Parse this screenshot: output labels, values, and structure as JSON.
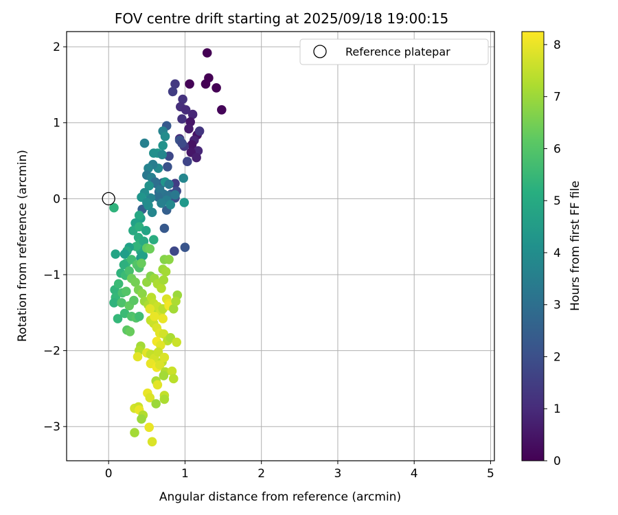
{
  "chart_data": {
    "type": "scatter",
    "title": "FOV centre drift starting at 2025/09/18 19:00:15",
    "xlabel": "Angular distance from reference (arcmin)",
    "ylabel": "Rotation from reference (arcmin)",
    "xlim": [
      -0.55,
      5.05
    ],
    "ylim": [
      -3.45,
      2.2
    ],
    "xticks": [
      0,
      1,
      2,
      3,
      4,
      5
    ],
    "yticks": [
      2,
      1,
      0,
      -1,
      -2,
      -3
    ],
    "xtick_labels": [
      "0",
      "1",
      "2",
      "3",
      "4",
      "5"
    ],
    "ytick_labels": [
      "2",
      "1",
      "0",
      "−1",
      "−2",
      "−3"
    ],
    "grid": true,
    "legend": {
      "position": "top-right",
      "entries": [
        "Reference platepar"
      ]
    },
    "colorbar": {
      "label": "Hours from first FF file",
      "range": [
        0,
        8.25
      ],
      "ticks": [
        0,
        1,
        2,
        3,
        4,
        5,
        6,
        7,
        8
      ],
      "colormap": "viridis"
    },
    "reference_point": {
      "x": 0,
      "y": 0
    },
    "points": [
      {
        "x": 1.29,
        "y": 1.92,
        "t": 0.0
      },
      {
        "x": 1.31,
        "y": 1.59,
        "t": 0.0
      },
      {
        "x": 1.27,
        "y": 1.51,
        "t": 0.0
      },
      {
        "x": 1.41,
        "y": 1.46,
        "t": 0.0
      },
      {
        "x": 1.06,
        "y": 1.51,
        "t": 0.05
      },
      {
        "x": 1.48,
        "y": 1.17,
        "t": 0.1
      },
      {
        "x": 0.87,
        "y": 1.51,
        "t": 1.4
      },
      {
        "x": 0.84,
        "y": 1.41,
        "t": 1.5
      },
      {
        "x": 0.97,
        "y": 1.31,
        "t": 1.2
      },
      {
        "x": 0.94,
        "y": 1.21,
        "t": 1.1
      },
      {
        "x": 1.01,
        "y": 1.17,
        "t": 1.0
      },
      {
        "x": 1.1,
        "y": 1.11,
        "t": 0.9
      },
      {
        "x": 0.96,
        "y": 1.05,
        "t": 1.2
      },
      {
        "x": 1.07,
        "y": 1.01,
        "t": 0.5
      },
      {
        "x": 1.05,
        "y": 0.92,
        "t": 0.6
      },
      {
        "x": 1.16,
        "y": 0.84,
        "t": 0.4
      },
      {
        "x": 1.19,
        "y": 0.89,
        "t": 1.3
      },
      {
        "x": 1.12,
        "y": 0.77,
        "t": 0.8
      },
      {
        "x": 1.09,
        "y": 0.71,
        "t": 0.4
      },
      {
        "x": 1.17,
        "y": 0.63,
        "t": 0.9
      },
      {
        "x": 1.08,
        "y": 0.61,
        "t": 0.5
      },
      {
        "x": 0.99,
        "y": 0.69,
        "t": 1.4
      },
      {
        "x": 0.93,
        "y": 0.79,
        "t": 1.0
      },
      {
        "x": 1.03,
        "y": 0.49,
        "t": 1.7
      },
      {
        "x": 1.15,
        "y": 0.54,
        "t": 0.7
      },
      {
        "x": 0.76,
        "y": 0.96,
        "t": 2.3
      },
      {
        "x": 0.93,
        "y": 0.77,
        "t": 2.1
      },
      {
        "x": 0.96,
        "y": 0.73,
        "t": 1.9
      },
      {
        "x": 0.79,
        "y": 0.56,
        "t": 1.8
      },
      {
        "x": 0.87,
        "y": 0.2,
        "t": 1.5
      },
      {
        "x": 0.77,
        "y": 0.42,
        "t": 2.1
      },
      {
        "x": 0.71,
        "y": 0.21,
        "t": 2.4
      },
      {
        "x": 0.82,
        "y": 0.06,
        "t": 2.2
      },
      {
        "x": 0.87,
        "y": 0.01,
        "t": 2.0
      },
      {
        "x": 0.89,
        "y": 0.1,
        "t": 1.9
      },
      {
        "x": 0.76,
        "y": -0.15,
        "t": 2.5
      },
      {
        "x": 0.73,
        "y": -0.39,
        "t": 2.3
      },
      {
        "x": 0.86,
        "y": -0.69,
        "t": 1.8
      },
      {
        "x": 1.0,
        "y": -0.64,
        "t": 2.2
      },
      {
        "x": 0.62,
        "y": 0.2,
        "t": 2.6
      },
      {
        "x": 0.66,
        "y": 0.09,
        "t": 2.7
      },
      {
        "x": 0.44,
        "y": -0.14,
        "t": 2.5
      },
      {
        "x": 0.71,
        "y": 0.89,
        "t": 3.7
      },
      {
        "x": 0.74,
        "y": 0.82,
        "t": 4.0
      },
      {
        "x": 0.71,
        "y": 0.7,
        "t": 4.2
      },
      {
        "x": 0.64,
        "y": 0.6,
        "t": 4.4
      },
      {
        "x": 0.59,
        "y": 0.6,
        "t": 4.1
      },
      {
        "x": 0.7,
        "y": 0.58,
        "t": 3.8
      },
      {
        "x": 0.65,
        "y": 0.4,
        "t": 3.9
      },
      {
        "x": 0.58,
        "y": 0.45,
        "t": 3.5
      },
      {
        "x": 0.52,
        "y": 0.4,
        "t": 3.7
      },
      {
        "x": 0.5,
        "y": 0.31,
        "t": 3.3
      },
      {
        "x": 0.56,
        "y": 0.28,
        "t": 3.6
      },
      {
        "x": 0.61,
        "y": 0.22,
        "t": 3.0
      },
      {
        "x": 0.74,
        "y": 0.22,
        "t": 4.3
      },
      {
        "x": 0.79,
        "y": 0.19,
        "t": 3.4
      },
      {
        "x": 0.98,
        "y": 0.27,
        "t": 3.8
      },
      {
        "x": 0.67,
        "y": 0.12,
        "t": 3.3
      },
      {
        "x": 0.72,
        "y": 0.06,
        "t": 3.2
      },
      {
        "x": 0.65,
        "y": 0.02,
        "t": 3.0
      },
      {
        "x": 0.78,
        "y": 0.04,
        "t": 3.1
      },
      {
        "x": 0.87,
        "y": 0.05,
        "t": 3.3
      },
      {
        "x": 0.76,
        "y": -0.02,
        "t": 3.5
      },
      {
        "x": 0.81,
        "y": -0.08,
        "t": 3.9
      },
      {
        "x": 0.69,
        "y": -0.06,
        "t": 3.6
      },
      {
        "x": 0.55,
        "y": 0.01,
        "t": 3.7
      },
      {
        "x": 0.53,
        "y": 0.17,
        "t": 4.2
      },
      {
        "x": 0.47,
        "y": 0.08,
        "t": 4.0
      },
      {
        "x": 0.43,
        "y": 0.02,
        "t": 4.3
      },
      {
        "x": 0.52,
        "y": -0.09,
        "t": 4.1
      },
      {
        "x": 0.57,
        "y": -0.18,
        "t": 3.8
      },
      {
        "x": 0.5,
        "y": -0.05,
        "t": 4.0
      },
      {
        "x": 0.47,
        "y": 0.73,
        "t": 3.6
      },
      {
        "x": 0.99,
        "y": -0.05,
        "t": 4.4
      },
      {
        "x": 0.42,
        "y": -0.26,
        "t": 4.6
      },
      {
        "x": 0.4,
        "y": -0.22,
        "t": 4.9
      },
      {
        "x": 0.35,
        "y": -0.32,
        "t": 4.7
      },
      {
        "x": 0.32,
        "y": -0.42,
        "t": 5.0
      },
      {
        "x": 0.4,
        "y": -0.37,
        "t": 5.2
      },
      {
        "x": 0.49,
        "y": -0.42,
        "t": 4.8
      },
      {
        "x": 0.39,
        "y": -0.51,
        "t": 5.1
      },
      {
        "x": 0.41,
        "y": -0.59,
        "t": 5.3
      },
      {
        "x": 0.46,
        "y": -0.56,
        "t": 5.0
      },
      {
        "x": 0.42,
        "y": -0.69,
        "t": 4.9
      },
      {
        "x": 0.36,
        "y": -0.63,
        "t": 5.4
      },
      {
        "x": 0.27,
        "y": -0.64,
        "t": 4.7
      },
      {
        "x": 0.24,
        "y": -0.69,
        "t": 5.0
      },
      {
        "x": 0.21,
        "y": -0.73,
        "t": 4.6
      },
      {
        "x": 0.09,
        "y": -0.73,
        "t": 4.8
      },
      {
        "x": 0.07,
        "y": -0.12,
        "t": 5.3
      },
      {
        "x": 0.42,
        "y": -0.78,
        "t": 4.5
      },
      {
        "x": 0.45,
        "y": -0.75,
        "t": 4.7
      },
      {
        "x": 0.59,
        "y": -0.54,
        "t": 5.1
      },
      {
        "x": 0.23,
        "y": -0.85,
        "t": 5.5
      },
      {
        "x": 0.3,
        "y": -0.8,
        "t": 5.7
      },
      {
        "x": 0.2,
        "y": -0.87,
        "t": 5.2
      },
      {
        "x": 0.16,
        "y": -0.98,
        "t": 5.3
      },
      {
        "x": 0.22,
        "y": -1.01,
        "t": 5.6
      },
      {
        "x": 0.27,
        "y": -0.95,
        "t": 5.8
      },
      {
        "x": 0.37,
        "y": -0.87,
        "t": 6.0
      },
      {
        "x": 0.4,
        "y": -0.91,
        "t": 5.9
      },
      {
        "x": 0.43,
        "y": -0.85,
        "t": 6.3
      },
      {
        "x": 0.5,
        "y": -0.65,
        "t": 6.2
      },
      {
        "x": 0.54,
        "y": -0.66,
        "t": 6.4
      },
      {
        "x": 0.73,
        "y": -0.8,
        "t": 6.7
      },
      {
        "x": 0.79,
        "y": -0.8,
        "t": 6.8
      },
      {
        "x": 0.71,
        "y": -0.93,
        "t": 7.0
      },
      {
        "x": 0.75,
        "y": -0.96,
        "t": 7.1
      },
      {
        "x": 0.08,
        "y": -1.2,
        "t": 5.4
      },
      {
        "x": 0.13,
        "y": -1.12,
        "t": 5.6
      },
      {
        "x": 0.09,
        "y": -1.3,
        "t": 5.5
      },
      {
        "x": 0.07,
        "y": -1.37,
        "t": 5.3
      },
      {
        "x": 0.18,
        "y": -1.24,
        "t": 5.8
      },
      {
        "x": 0.23,
        "y": -1.22,
        "t": 6.0
      },
      {
        "x": 0.17,
        "y": -1.37,
        "t": 5.9
      },
      {
        "x": 0.21,
        "y": -1.51,
        "t": 5.6
      },
      {
        "x": 0.12,
        "y": -1.58,
        "t": 5.5
      },
      {
        "x": 0.27,
        "y": -1.41,
        "t": 6.2
      },
      {
        "x": 0.33,
        "y": -1.34,
        "t": 6.1
      },
      {
        "x": 0.3,
        "y": -1.55,
        "t": 5.9
      },
      {
        "x": 0.36,
        "y": -1.57,
        "t": 6.0
      },
      {
        "x": 0.4,
        "y": -1.55,
        "t": 5.7
      },
      {
        "x": 0.24,
        "y": -1.73,
        "t": 6.1
      },
      {
        "x": 0.28,
        "y": -1.75,
        "t": 6.3
      },
      {
        "x": 0.3,
        "y": -1.05,
        "t": 6.4
      },
      {
        "x": 0.35,
        "y": -1.1,
        "t": 6.5
      },
      {
        "x": 0.39,
        "y": -1.2,
        "t": 6.6
      },
      {
        "x": 0.44,
        "y": -1.25,
        "t": 6.8
      },
      {
        "x": 0.5,
        "y": -1.1,
        "t": 6.9
      },
      {
        "x": 0.55,
        "y": -1.02,
        "t": 6.7
      },
      {
        "x": 0.6,
        "y": -1.05,
        "t": 7.0
      },
      {
        "x": 0.64,
        "y": -1.12,
        "t": 7.2
      },
      {
        "x": 0.69,
        "y": -1.18,
        "t": 7.3
      },
      {
        "x": 0.72,
        "y": -1.07,
        "t": 7.1
      },
      {
        "x": 0.47,
        "y": -1.35,
        "t": 7.0
      },
      {
        "x": 0.52,
        "y": -1.4,
        "t": 7.2
      },
      {
        "x": 0.56,
        "y": -1.3,
        "t": 7.4
      },
      {
        "x": 0.59,
        "y": -1.38,
        "t": 7.5
      },
      {
        "x": 0.61,
        "y": -1.47,
        "t": 7.3
      },
      {
        "x": 0.64,
        "y": -1.42,
        "t": 7.6
      },
      {
        "x": 0.68,
        "y": -1.5,
        "t": 7.7
      },
      {
        "x": 0.71,
        "y": -1.45,
        "t": 7.4
      },
      {
        "x": 0.76,
        "y": -1.32,
        "t": 7.8
      },
      {
        "x": 0.79,
        "y": -1.38,
        "t": 8.0
      },
      {
        "x": 0.79,
        "y": -1.41,
        "t": 8.1
      },
      {
        "x": 0.85,
        "y": -1.45,
        "t": 7.1
      },
      {
        "x": 0.9,
        "y": -1.27,
        "t": 7.0
      },
      {
        "x": 0.88,
        "y": -1.35,
        "t": 7.2
      },
      {
        "x": 0.55,
        "y": -1.6,
        "t": 7.5
      },
      {
        "x": 0.59,
        "y": -1.64,
        "t": 7.6
      },
      {
        "x": 0.63,
        "y": -1.7,
        "t": 7.8
      },
      {
        "x": 0.67,
        "y": -1.77,
        "t": 7.9
      },
      {
        "x": 0.72,
        "y": -1.78,
        "t": 7.7
      },
      {
        "x": 0.71,
        "y": -1.58,
        "t": 8.0
      },
      {
        "x": 0.77,
        "y": -1.87,
        "t": 7.4
      },
      {
        "x": 0.81,
        "y": -1.83,
        "t": 7.2
      },
      {
        "x": 0.63,
        "y": -1.88,
        "t": 8.1
      },
      {
        "x": 0.68,
        "y": -1.93,
        "t": 7.9
      },
      {
        "x": 0.89,
        "y": -1.89,
        "t": 7.6
      },
      {
        "x": 0.42,
        "y": -1.94,
        "t": 7.1
      },
      {
        "x": 0.4,
        "y": -2.0,
        "t": 7.3
      },
      {
        "x": 0.38,
        "y": -2.08,
        "t": 7.9
      },
      {
        "x": 0.5,
        "y": -2.03,
        "t": 7.9
      },
      {
        "x": 0.55,
        "y": -2.05,
        "t": 7.5
      },
      {
        "x": 0.6,
        "y": -2.1,
        "t": 7.7
      },
      {
        "x": 0.65,
        "y": -2.02,
        "t": 7.6
      },
      {
        "x": 0.7,
        "y": -2.15,
        "t": 7.4
      },
      {
        "x": 0.73,
        "y": -2.09,
        "t": 7.8
      },
      {
        "x": 0.55,
        "y": -2.17,
        "t": 8.0
      },
      {
        "x": 0.63,
        "y": -2.22,
        "t": 8.1
      },
      {
        "x": 0.67,
        "y": -2.19,
        "t": 7.8
      },
      {
        "x": 0.74,
        "y": -2.28,
        "t": 7.3
      },
      {
        "x": 0.72,
        "y": -2.33,
        "t": 7.1
      },
      {
        "x": 0.83,
        "y": -2.27,
        "t": 7.6
      },
      {
        "x": 0.85,
        "y": -2.37,
        "t": 7.4
      },
      {
        "x": 0.62,
        "y": -2.4,
        "t": 7.2
      },
      {
        "x": 0.64,
        "y": -2.45,
        "t": 7.9
      },
      {
        "x": 0.51,
        "y": -2.56,
        "t": 8.0
      },
      {
        "x": 0.54,
        "y": -2.62,
        "t": 7.8
      },
      {
        "x": 0.73,
        "y": -2.59,
        "t": 7.5
      },
      {
        "x": 0.73,
        "y": -2.64,
        "t": 7.2
      },
      {
        "x": 0.62,
        "y": -2.7,
        "t": 7.0
      },
      {
        "x": 0.34,
        "y": -2.76,
        "t": 7.7
      },
      {
        "x": 0.39,
        "y": -2.74,
        "t": 7.6
      },
      {
        "x": 0.4,
        "y": -2.78,
        "t": 8.0
      },
      {
        "x": 0.45,
        "y": -2.85,
        "t": 7.3
      },
      {
        "x": 0.43,
        "y": -2.9,
        "t": 7.0
      },
      {
        "x": 0.53,
        "y": -3.01,
        "t": 8.0
      },
      {
        "x": 0.34,
        "y": -3.08,
        "t": 7.1
      },
      {
        "x": 0.57,
        "y": -3.2,
        "t": 7.8
      },
      {
        "x": 0.54,
        "y": -1.45,
        "t": 7.9
      },
      {
        "x": 0.6,
        "y": -1.55,
        "t": 8.0
      }
    ]
  }
}
